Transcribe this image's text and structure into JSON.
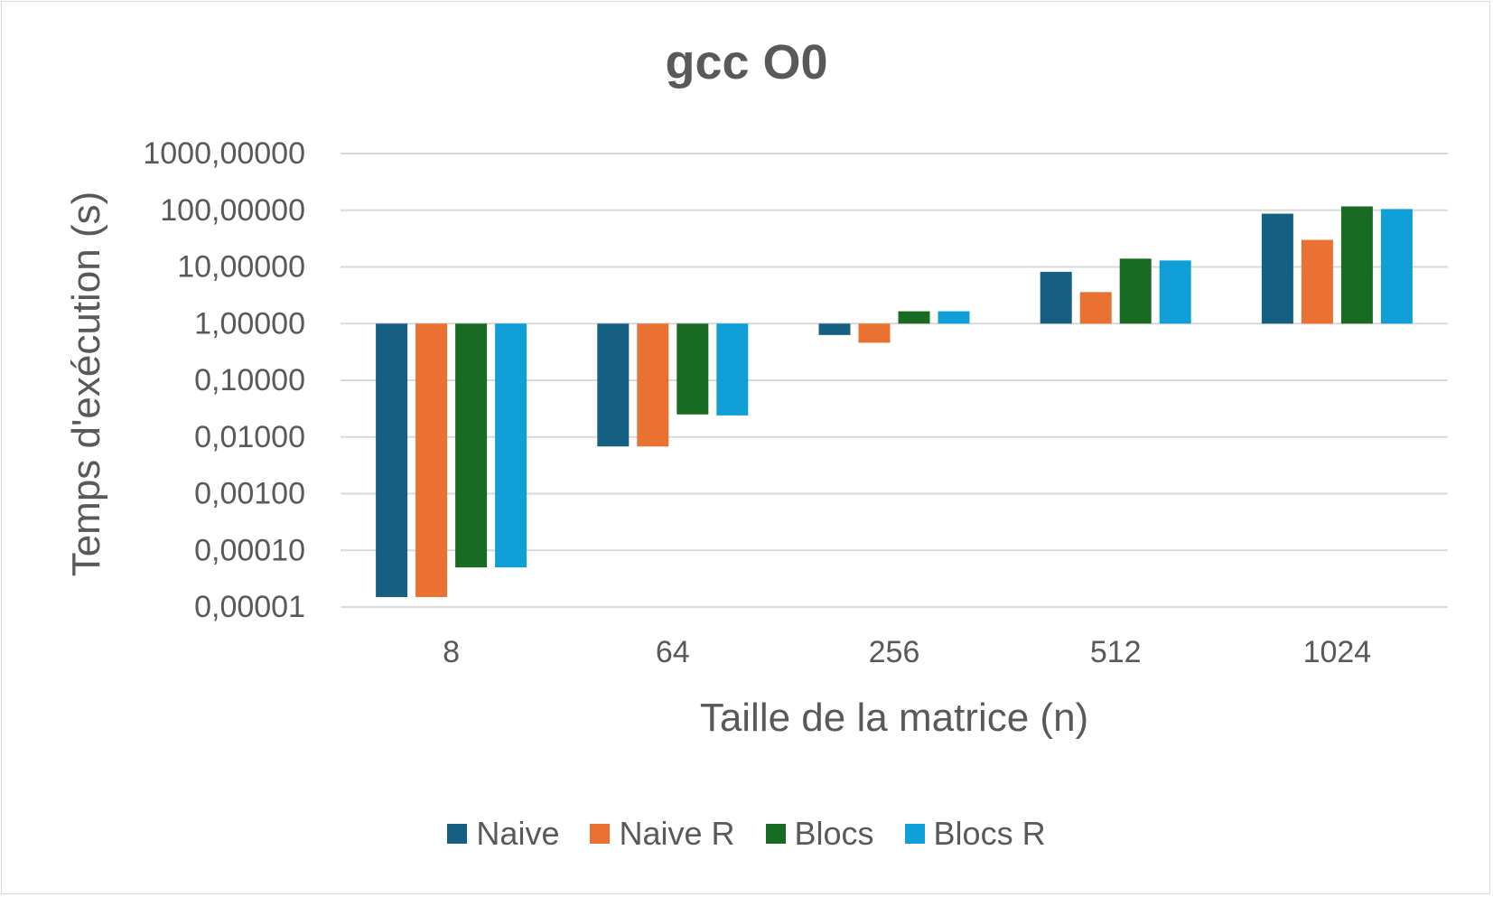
{
  "chart_data": {
    "type": "bar",
    "title": "gcc O0",
    "xlabel": "Taille de la matrice (n)",
    "ylabel": "Temps d'exécution (s)",
    "yscale": "log",
    "bar_baseline": 1,
    "ylim": [
      1e-05,
      1000
    ],
    "yticks": [
      {
        "value": 1000,
        "label": "1000,00000"
      },
      {
        "value": 100,
        "label": "100,00000"
      },
      {
        "value": 10,
        "label": "10,00000"
      },
      {
        "value": 1,
        "label": "1,00000"
      },
      {
        "value": 0.1,
        "label": "0,10000"
      },
      {
        "value": 0.01,
        "label": "0,01000"
      },
      {
        "value": 0.001,
        "label": "0,00100"
      },
      {
        "value": 0.0001,
        "label": "0,00010"
      },
      {
        "value": 1e-05,
        "label": "0,00001"
      }
    ],
    "categories": [
      "8",
      "64",
      "256",
      "512",
      "1024"
    ],
    "series": [
      {
        "name": "Naive",
        "color": "#156082",
        "values": [
          1.5e-05,
          0.0068,
          0.63,
          8.2,
          87
        ]
      },
      {
        "name": "Naive R",
        "color": "#E97132",
        "values": [
          1.5e-05,
          0.0068,
          0.46,
          3.6,
          30
        ]
      },
      {
        "name": "Blocs",
        "color": "#196B24",
        "values": [
          5e-05,
          0.025,
          1.65,
          14,
          117
        ]
      },
      {
        "name": "Blocs R",
        "color": "#0F9ED5",
        "values": [
          5e-05,
          0.024,
          1.65,
          13,
          105
        ]
      }
    ],
    "grid": true,
    "legend_position": "bottom"
  }
}
